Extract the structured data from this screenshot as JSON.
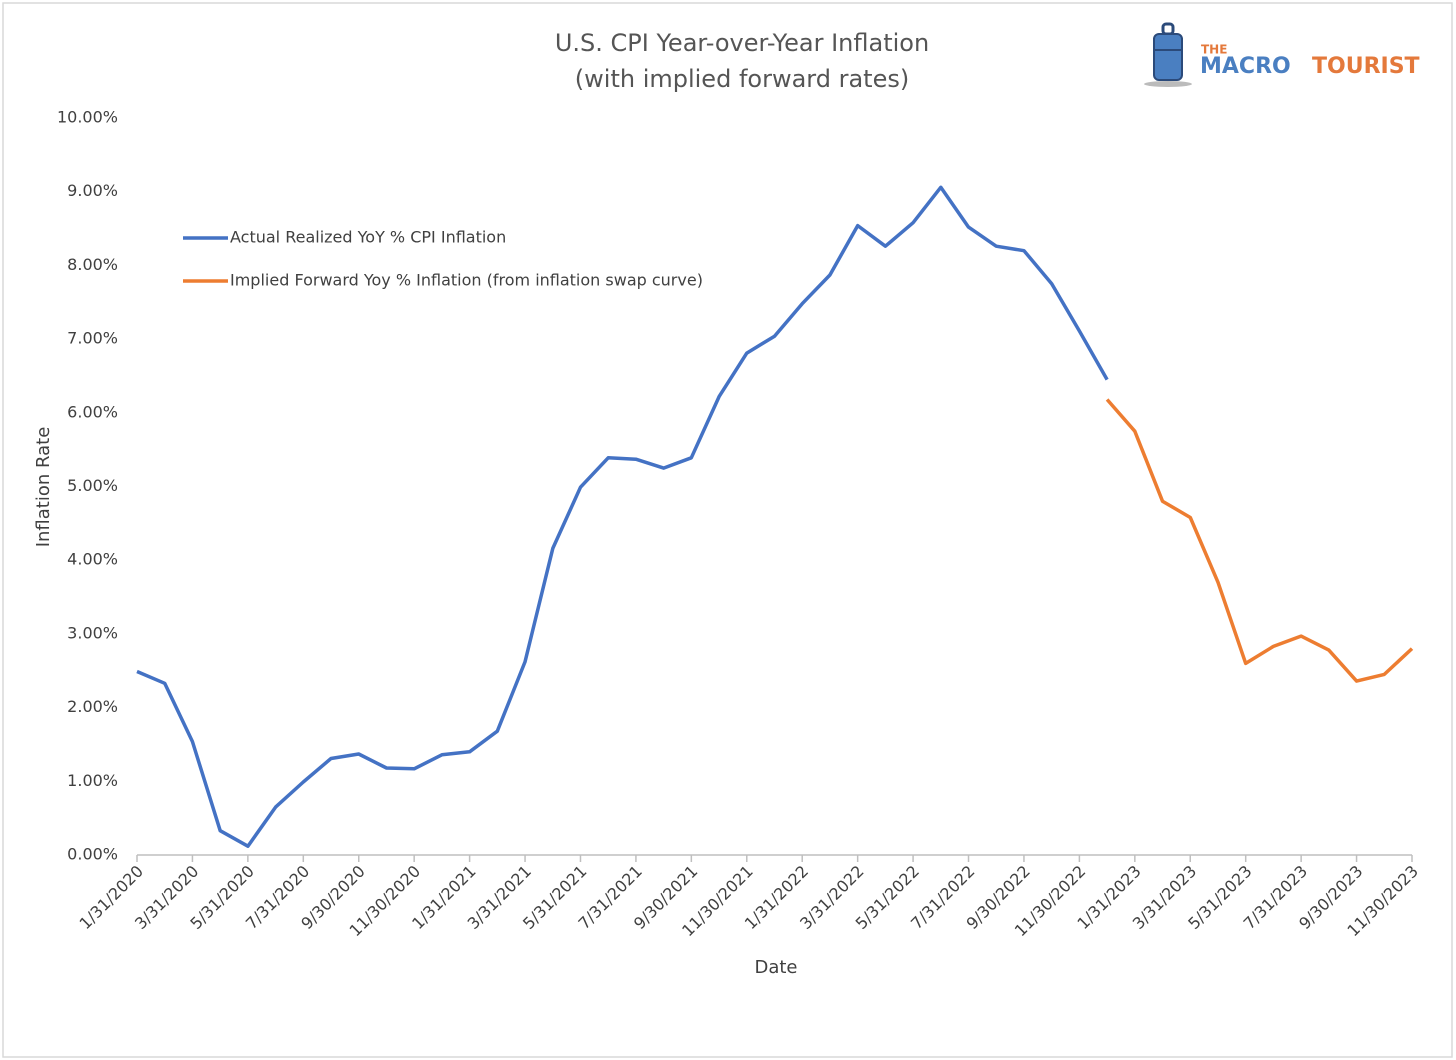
{
  "chart_data": {
    "type": "line",
    "title": "U.S. CPI Year-over-Year Inflation",
    "subtitle": "(with implied forward rates)",
    "xlabel": "Date",
    "ylabel": "Inflation Rate",
    "logo": {
      "top": "THE",
      "left": "MACRO",
      "right": "TOURIST"
    },
    "categories": [
      "1/31/2020",
      null,
      "3/31/2020",
      null,
      "5/31/2020",
      null,
      "7/31/2020",
      null,
      "9/30/2020",
      null,
      "11/30/2020",
      null,
      "1/31/2021",
      null,
      "3/31/2021",
      null,
      "5/31/2021",
      null,
      "7/31/2021",
      null,
      "9/30/2021",
      null,
      "11/30/2021",
      null,
      "1/31/2022",
      null,
      "3/31/2022",
      null,
      "5/31/2022",
      null,
      "7/31/2022",
      null,
      "9/30/2022",
      null,
      "11/30/2022",
      null,
      "1/31/2023",
      null,
      "3/31/2023",
      null,
      "5/31/2023",
      null,
      "7/31/2023",
      null,
      "9/30/2023",
      null,
      "11/30/2023"
    ],
    "series": [
      {
        "name": "Actual Realized YoY % CPI Inflation",
        "color": "#4472c4",
        "values": [
          2.49,
          2.33,
          1.54,
          0.33,
          0.12,
          0.65,
          0.99,
          1.31,
          1.37,
          1.18,
          1.17,
          1.36,
          1.4,
          1.68,
          2.62,
          4.16,
          4.99,
          5.39,
          5.37,
          5.25,
          5.39,
          6.22,
          6.81,
          7.04,
          7.48,
          7.87,
          8.54,
          8.26,
          8.58,
          9.06,
          8.52,
          8.26,
          8.2,
          7.75,
          7.11,
          6.45,
          null,
          null,
          null,
          null,
          null,
          null,
          null,
          null,
          null,
          null,
          null
        ]
      },
      {
        "name": "Implied Forward Yoy % Inflation (from inflation swap curve)",
        "color": "#ed7d31",
        "values": [
          null,
          null,
          null,
          null,
          null,
          null,
          null,
          null,
          null,
          null,
          null,
          null,
          null,
          null,
          null,
          null,
          null,
          null,
          null,
          null,
          null,
          null,
          null,
          null,
          null,
          null,
          null,
          null,
          null,
          null,
          null,
          null,
          null,
          null,
          null,
          6.18,
          5.75,
          4.8,
          4.58,
          3.7,
          2.6,
          2.83,
          2.97,
          2.78,
          2.36,
          2.45,
          2.8
        ]
      }
    ],
    "ylim": [
      0,
      10
    ],
    "yticks": [
      {
        "value": 0,
        "label": "0.00%"
      },
      {
        "value": 1,
        "label": "1.00%"
      },
      {
        "value": 2,
        "label": "2.00%"
      },
      {
        "value": 3,
        "label": "3.00%"
      },
      {
        "value": 4,
        "label": "4.00%"
      },
      {
        "value": 5,
        "label": "5.00%"
      },
      {
        "value": 6,
        "label": "6.00%"
      },
      {
        "value": 7,
        "label": "7.00%"
      },
      {
        "value": 8,
        "label": "8.00%"
      },
      {
        "value": 9,
        "label": "9.00%"
      },
      {
        "value": 10,
        "label": "10.00%"
      }
    ],
    "grid": false,
    "legend": "upper left"
  }
}
